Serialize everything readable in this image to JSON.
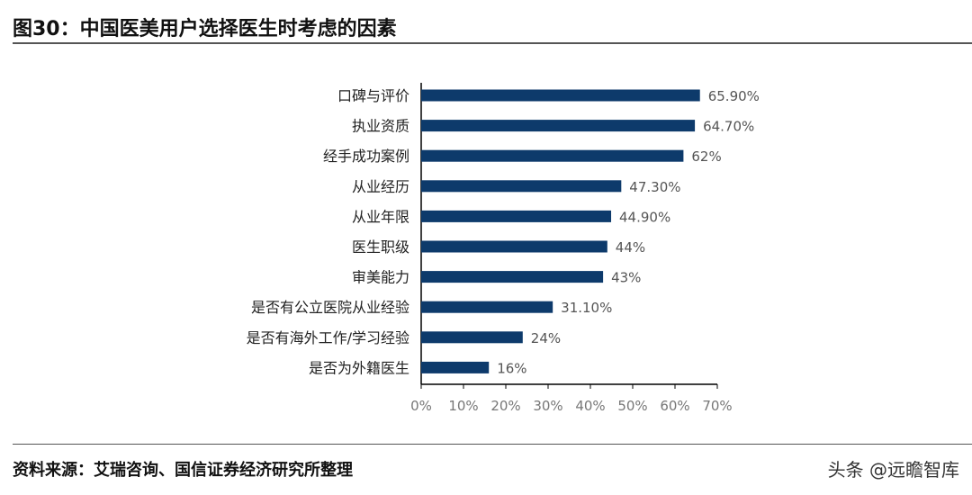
{
  "title": "图30：中国医美用户选择医生时考虑的因素",
  "source": "资料来源：艾瑞咨询、国信证券经济研究所整理",
  "watermark": "头条 @远瞻智库",
  "chart_data": {
    "type": "bar",
    "orientation": "horizontal",
    "categories": [
      "口碑与评价",
      "执业资质",
      "经手成功案例",
      "从业经历",
      "从业年限",
      "医生职级",
      "审美能力",
      "是否有公立医院从业经验",
      "是否有海外工作/学习经验",
      "是否为外籍医生"
    ],
    "values": [
      65.9,
      64.7,
      62,
      47.3,
      44.9,
      44,
      43,
      31.1,
      24,
      16
    ],
    "data_labels": [
      "65.90%",
      "64.70%",
      "62%",
      "47.30%",
      "44.90%",
      "44%",
      "43%",
      "31.10%",
      "24%",
      "16%"
    ],
    "xlim": [
      0,
      70
    ],
    "xticks": [
      "0%",
      "10%",
      "20%",
      "30%",
      "40%",
      "50%",
      "60%",
      "70%"
    ],
    "bar_color": "#0d3a6b",
    "grid": false,
    "legend": "none"
  }
}
